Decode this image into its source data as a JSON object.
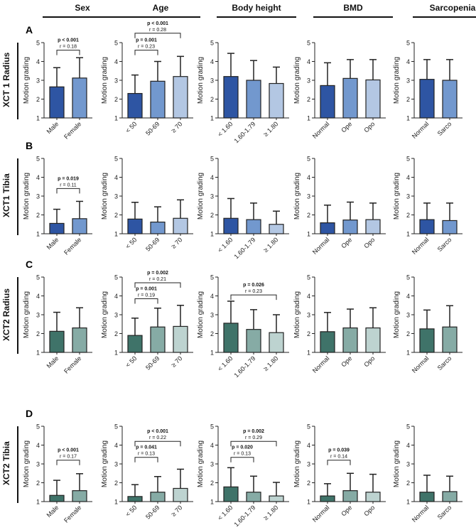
{
  "column_headers": [
    "Sex",
    "Age",
    "Body height",
    "BMD",
    "Sarcopenia"
  ],
  "rows": [
    {
      "letter": "A",
      "label": "XCT 1 Radius",
      "palette": [
        "#2E55A3",
        "#7298CE",
        "#B3C7E3"
      ]
    },
    {
      "letter": "B",
      "label": "XCT1 Tibia",
      "palette": [
        "#2E55A3",
        "#7298CE",
        "#B3C7E3"
      ]
    },
    {
      "letter": "C",
      "label": "XCT2 Radius",
      "palette": [
        "#3F7369",
        "#86ABA5",
        "#BDD3D0"
      ]
    },
    {
      "letter": "D",
      "label": "XCT2 Tibia",
      "palette": [
        "#3F7369",
        "#86ABA5",
        "#BDD3D0"
      ]
    }
  ],
  "chart_data": {
    "type": "bar",
    "ylabel": "Motion grading",
    "ylim": [
      1,
      5
    ],
    "yticks": [
      1,
      2,
      3,
      4,
      5
    ],
    "categories": [
      [
        "Male",
        "Female"
      ],
      [
        "< 50",
        "50-69",
        "≥ 70"
      ],
      [
        "< 1.60",
        "1.60-1.79",
        "≥ 1.80"
      ],
      [
        "Normal",
        "Ope",
        "Opo"
      ],
      [
        "Normal",
        "Sarco"
      ]
    ],
    "panels": [
      [
        {
          "means": [
            2.65,
            3.12
          ],
          "upper": [
            3.67,
            4.2
          ],
          "sig": [
            {
              "a": 0,
              "b": 1,
              "at": 4.6,
              "p": "p < 0.001",
              "r": "r = 0.18"
            }
          ]
        },
        {
          "means": [
            2.3,
            2.95,
            3.2
          ],
          "upper": [
            3.28,
            4.0,
            4.27
          ],
          "sig": [
            {
              "a": 0,
              "b": 1,
              "at": 4.6,
              "p": "p = 0.001",
              "r": "r = 0.23"
            },
            {
              "a": 0,
              "b": 2,
              "at": 5.5,
              "p": "p < 0.001",
              "r": "r = 0.28"
            }
          ]
        },
        {
          "means": [
            3.2,
            3.0,
            2.83
          ],
          "upper": [
            4.43,
            4.05,
            3.7
          ],
          "sig": []
        },
        {
          "means": [
            2.72,
            3.1,
            3.02
          ],
          "upper": [
            3.93,
            4.1,
            4.1
          ],
          "sig": []
        },
        {
          "means": [
            3.05,
            3.0
          ],
          "upper": [
            4.1,
            4.1
          ],
          "sig": []
        }
      ],
      [
        {
          "means": [
            1.55,
            1.8
          ],
          "upper": [
            2.3,
            2.72
          ],
          "sig": [
            {
              "a": 0,
              "b": 1,
              "at": 3.4,
              "p": "p = 0.019",
              "r": "r = 0.11"
            }
          ]
        },
        {
          "means": [
            1.78,
            1.62,
            1.82
          ],
          "upper": [
            2.67,
            2.43,
            2.8
          ],
          "sig": []
        },
        {
          "means": [
            1.82,
            1.75,
            1.5
          ],
          "upper": [
            2.87,
            2.63,
            2.2
          ],
          "sig": []
        },
        {
          "means": [
            1.58,
            1.73,
            1.75
          ],
          "upper": [
            2.52,
            2.68,
            2.63
          ],
          "sig": []
        },
        {
          "means": [
            1.75,
            1.7
          ],
          "upper": [
            2.63,
            2.63
          ],
          "sig": []
        }
      ],
      [
        {
          "means": [
            2.12,
            2.3
          ],
          "upper": [
            3.13,
            3.37
          ],
          "sig": []
        },
        {
          "means": [
            1.9,
            2.35,
            2.38
          ],
          "upper": [
            2.82,
            3.35,
            3.5
          ],
          "sig": [
            {
              "a": 0,
              "b": 1,
              "at": 3.85,
              "p": "p = 0.001",
              "r": "r = 0.19"
            },
            {
              "a": 0,
              "b": 2,
              "at": 4.7,
              "p": "p = 0.002",
              "r": "r = 0.21"
            }
          ]
        },
        {
          "means": [
            2.55,
            2.22,
            2.05
          ],
          "upper": [
            3.72,
            3.27,
            3.0
          ],
          "sig": [
            {
              "a": 0,
              "b": 2,
              "at": 4.05,
              "p": "p = 0.026",
              "r": "r = 0.23"
            }
          ]
        },
        {
          "means": [
            2.1,
            2.3,
            2.3
          ],
          "upper": [
            3.12,
            3.3,
            3.37
          ],
          "sig": []
        },
        {
          "means": [
            2.25,
            2.35
          ],
          "upper": [
            3.25,
            3.48
          ],
          "sig": []
        }
      ],
      [
        {
          "means": [
            1.33,
            1.58
          ],
          "upper": [
            2.13,
            2.48
          ],
          "sig": [
            {
              "a": 0,
              "b": 1,
              "at": 3.2,
              "p": "p < 0.001",
              "r": "r = 0.17"
            }
          ]
        },
        {
          "means": [
            1.27,
            1.5,
            1.7
          ],
          "upper": [
            1.9,
            2.33,
            2.72
          ],
          "sig": [
            {
              "a": 0,
              "b": 1,
              "at": 3.35,
              "p": "p = 0.041",
              "r": "r = 0.13"
            },
            {
              "a": 0,
              "b": 2,
              "at": 4.2,
              "p": "p < 0.001",
              "r": "r = 0.22"
            }
          ]
        },
        {
          "means": [
            1.78,
            1.5,
            1.3
          ],
          "upper": [
            2.8,
            2.35,
            2.02
          ],
          "sig": [
            {
              "a": 0,
              "b": 1,
              "at": 3.35,
              "p": "p = 0.020",
              "r": "r = 0.13"
            },
            {
              "a": 0,
              "b": 2,
              "at": 4.2,
              "p": "p = 0.002",
              "r": "r = 0.29"
            }
          ]
        },
        {
          "means": [
            1.3,
            1.58,
            1.5
          ],
          "upper": [
            1.95,
            2.5,
            2.45
          ],
          "sig": [
            {
              "a": 0,
              "b": 1,
              "at": 3.2,
              "p": "p = 0.039",
              "r": "r = 0.14"
            }
          ]
        },
        {
          "means": [
            1.5,
            1.53
          ],
          "upper": [
            2.4,
            2.35
          ],
          "sig": []
        }
      ]
    ]
  }
}
